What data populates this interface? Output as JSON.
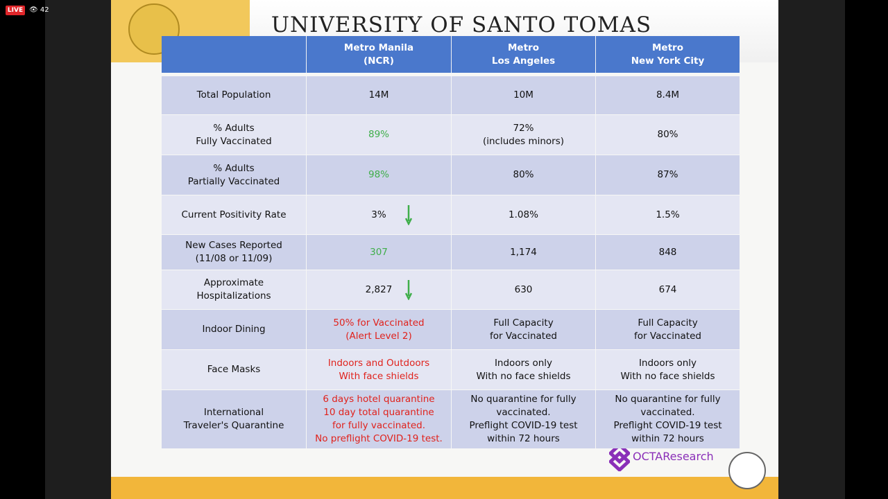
{
  "stream": {
    "live": "LIVE",
    "viewers": "42"
  },
  "header": {
    "title": "UNIVERSITY OF SANTO TOMAS"
  },
  "table": {
    "headers": [
      "Metro Manila\n(NCR)",
      "Metro\nLos Angeles",
      "Metro\nNew York City"
    ],
    "rows": [
      {
        "label": "Total Population",
        "cells": [
          "14M",
          "10M",
          "8.4M"
        ]
      },
      {
        "label": "% Adults\nFully Vaccinated",
        "cells": [
          {
            "text": "89%",
            "color": "#3fae4a"
          },
          "72%\n(includes minors)",
          "80%"
        ]
      },
      {
        "label": "% Adults\nPartially Vaccinated",
        "cells": [
          {
            "text": "98%",
            "color": "#3fae4a"
          },
          "80%",
          "87%"
        ]
      },
      {
        "label": "Current Positivity Rate",
        "cells": [
          {
            "text": "3%",
            "trend": "down"
          },
          "1.08%",
          "1.5%"
        ]
      },
      {
        "label": "New Cases Reported\n(11/08 or 11/09)",
        "cells": [
          {
            "text": "307",
            "color": "#3fae4a"
          },
          "1,174",
          "848"
        ]
      },
      {
        "label": "Approximate\nHospitalizations",
        "cells": [
          {
            "text": "2,827",
            "trend": "down"
          },
          "630",
          "674"
        ]
      },
      {
        "label": "Indoor Dining",
        "cells": [
          {
            "text": "50% for Vaccinated\n(Alert Level 2)",
            "color": "#e0221c"
          },
          "Full Capacity\nfor Vaccinated",
          "Full Capacity\nfor Vaccinated"
        ]
      },
      {
        "label": "Face Masks",
        "cells": [
          {
            "text": "Indoors and Outdoors\nWith face shields",
            "color": "#e0221c"
          },
          "Indoors only\nWith no face shields",
          "Indoors only\nWith no face shields"
        ]
      },
      {
        "label": "International\nTraveler's Quarantine",
        "cells": [
          {
            "text": "6 days hotel quarantine\n10 day total quarantine\nfor fully vaccinated.\nNo preflight COVID-19 test.",
            "color": "#e0221c"
          },
          "No quarantine for fully\nvaccinated.\nPreflight COVID-19 test\nwithin 72 hours",
          "No quarantine for fully\nvaccinated.\nPreflight COVID-19 test\nwithin 72 hours"
        ]
      }
    ]
  },
  "footer": {
    "brand": "OCTAResearch"
  }
}
